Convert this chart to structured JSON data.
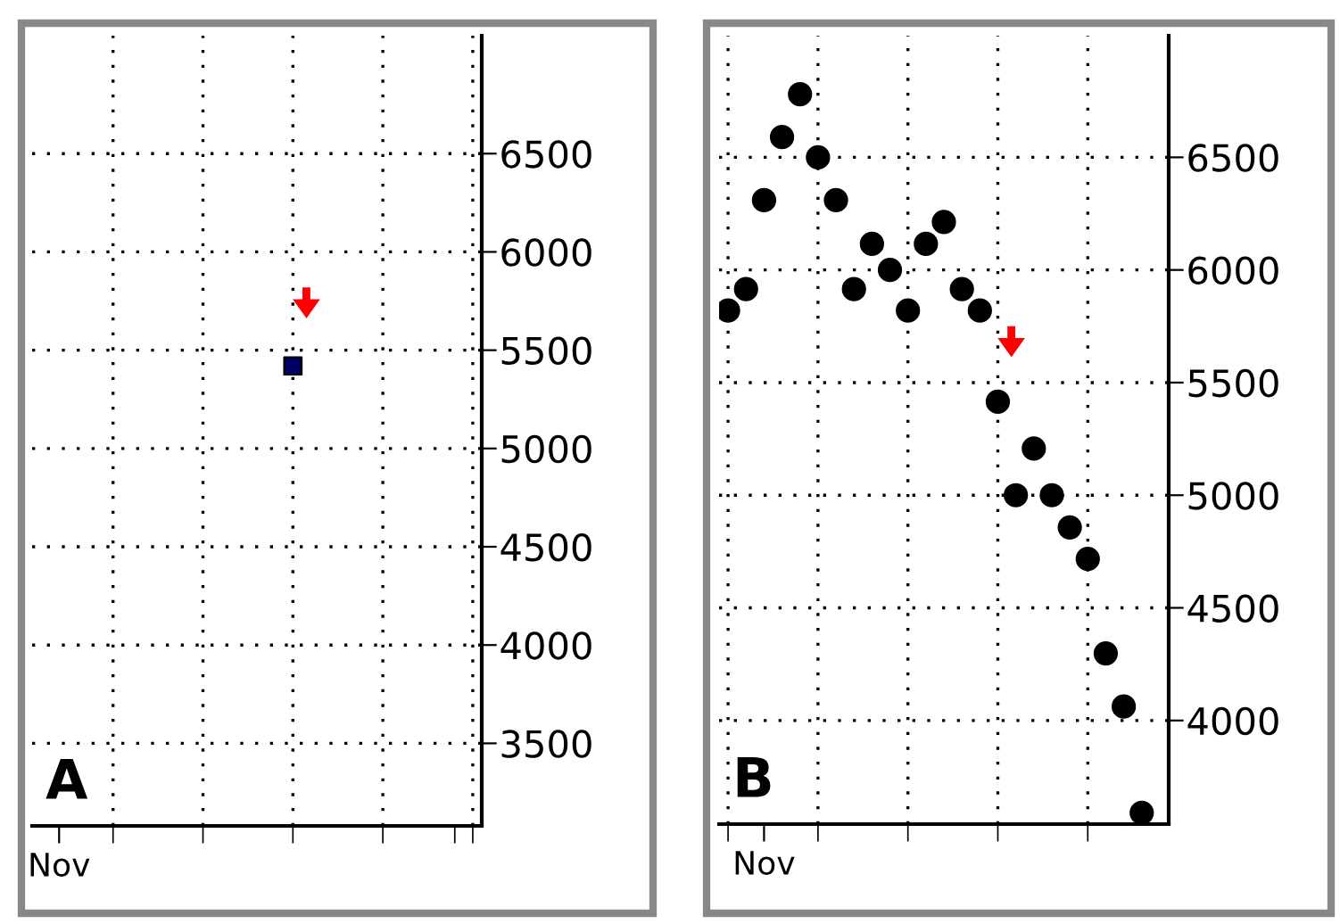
{
  "chart_data": [
    {
      "type": "scatter",
      "title": "A",
      "categories": [
        null,
        "Nov",
        null,
        null,
        null,
        null,
        null,
        null,
        null,
        null,
        null,
        null,
        null,
        null,
        null,
        null,
        null,
        null,
        null,
        null,
        null,
        null,
        null,
        null,
        null
      ],
      "values": [
        null,
        null,
        null,
        null,
        null,
        null,
        null,
        null,
        null,
        null,
        null,
        null,
        null,
        null,
        5420,
        null,
        null,
        null,
        null,
        null,
        null,
        null,
        null,
        null,
        null
      ],
      "color": "#000066",
      "marker": "square",
      "grid": true,
      "ylim": [
        3080,
        7100
      ],
      "yticks": [
        3500,
        4000,
        4500,
        5000,
        5500,
        6000,
        6500
      ]
    },
    {
      "type": "scatter",
      "title": "B",
      "categories": [
        null,
        null,
        "Nov",
        null,
        null,
        null,
        null,
        null,
        null,
        null,
        null,
        null,
        null,
        null,
        null,
        null,
        null,
        null,
        null,
        null,
        null,
        null,
        null,
        null,
        null
      ],
      "values": [
        5820,
        5915,
        6310,
        6590,
        6780,
        6500,
        6310,
        5915,
        6116,
        6000,
        5820,
        6116,
        6213,
        5915,
        5820,
        5415,
        5000,
        5207,
        5000,
        4857,
        4717,
        4298,
        4062,
        3590,
        null
      ],
      "color": "#000000",
      "marker": "circle",
      "grid": true,
      "ylim": [
        3540,
        7040
      ],
      "yticks": [
        4000,
        4500,
        5000,
        5500,
        6000,
        6500
      ]
    }
  ]
}
